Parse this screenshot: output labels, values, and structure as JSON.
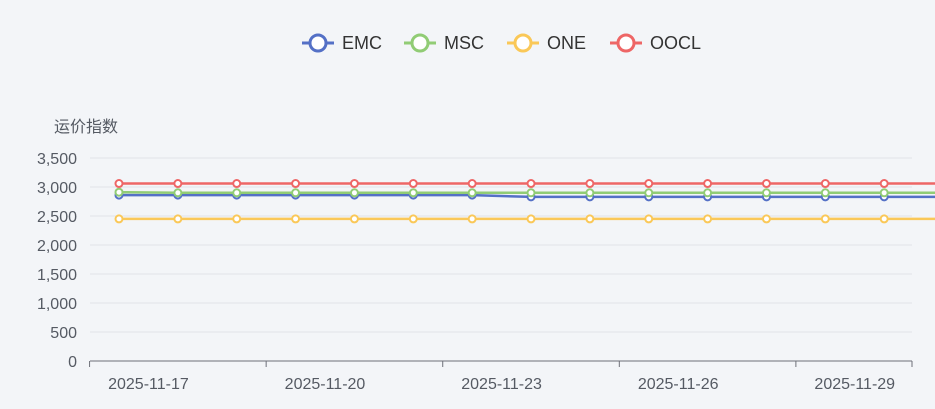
{
  "chart_data": {
    "type": "line",
    "ylabel": "运价指数",
    "ylim": [
      0,
      3500
    ],
    "yticks": [
      0,
      500,
      1000,
      1500,
      2000,
      2500,
      3000,
      3500
    ],
    "ytick_labels": [
      "0",
      "500",
      "1,000",
      "1,500",
      "2,000",
      "2,500",
      "3,000",
      "3,500"
    ],
    "x": [
      "2025-11-16",
      "2025-11-17",
      "2025-11-18",
      "2025-11-19",
      "2025-11-20",
      "2025-11-21",
      "2025-11-22",
      "2025-11-23",
      "2025-11-24",
      "2025-11-25",
      "2025-11-26",
      "2025-11-27",
      "2025-11-28",
      "2025-11-29",
      "2025-11-30"
    ],
    "xtick_labels": [
      "2025-11-17",
      "2025-11-20",
      "2025-11-23",
      "2025-11-26",
      "2025-11-29"
    ],
    "grid": true,
    "legend_position": "top-center",
    "series": [
      {
        "name": "EMC",
        "color": "#5470c6",
        "values": [
          2860,
          2860,
          2860,
          2860,
          2860,
          2860,
          2860,
          2830,
          2830,
          2830,
          2830,
          2830,
          2830,
          2830,
          2830
        ]
      },
      {
        "name": "MSC",
        "color": "#91cc75",
        "values": [
          2910,
          2900,
          2900,
          2900,
          2900,
          2900,
          2900,
          2900,
          2900,
          2900,
          2900,
          2900,
          2900,
          2900,
          2900
        ]
      },
      {
        "name": "ONE",
        "color": "#fac858",
        "values": [
          2450,
          2450,
          2450,
          2450,
          2450,
          2450,
          2450,
          2450,
          2450,
          2450,
          2450,
          2450,
          2450,
          2450,
          2450
        ]
      },
      {
        "name": "OOCL",
        "color": "#ee6666",
        "values": [
          3060,
          3060,
          3060,
          3060,
          3060,
          3060,
          3060,
          3060,
          3060,
          3060,
          3060,
          3060,
          3060,
          3060,
          3060
        ]
      }
    ]
  }
}
